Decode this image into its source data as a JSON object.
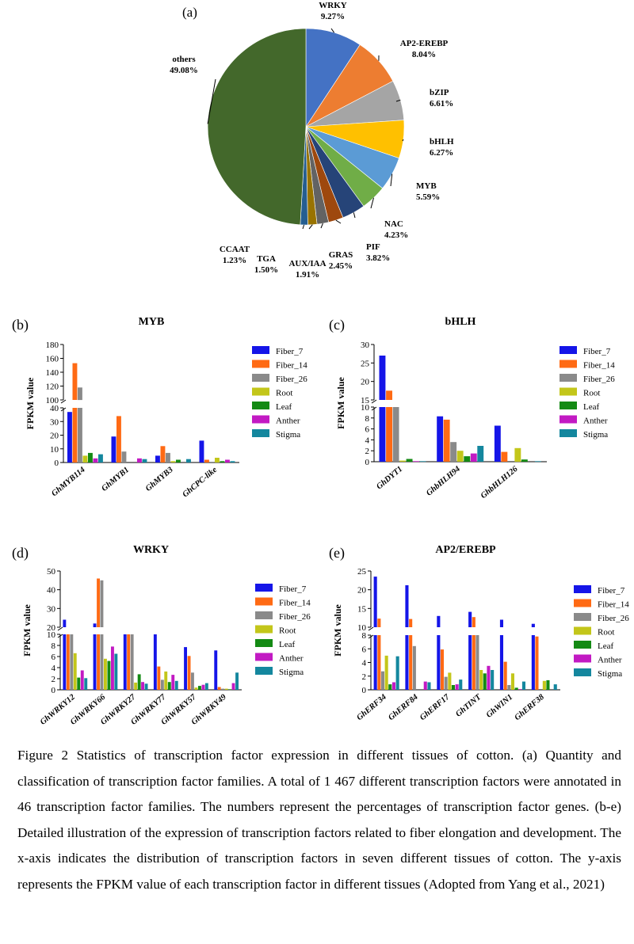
{
  "caption": "Figure 2 Statistics of transcription factor expression in different tissues of cotton. (a) Quantity and classification of transcription factor families. A total of 1 467 different transcription factors were annotated in 46 transcription factor families. The numbers represent the percentages of transcription factor genes. (b-e) Detailed illustration of the expression of transcription factors related to fiber elongation and development. The x-axis indicates the distribution of transcription factors in seven different tissues of cotton. The y-axis represents the FPKM value of each transcription factor in different tissues (Adopted from Yang et al., 2021)",
  "tissues": [
    "Fiber_7",
    "Fiber_14",
    "Fiber_26",
    "Root",
    "Leaf",
    "Anther",
    "Stigma"
  ],
  "colors": [
    "#1515e8",
    "#ff6a14",
    "#8a8a8a",
    "#c3c61a",
    "#148a14",
    "#c21ac3",
    "#14879e"
  ],
  "chart_data": [
    {
      "panel": "(a)",
      "type": "pie",
      "slices": [
        {
          "label": "WRKY",
          "value": 9.27,
          "color": "#4472c4"
        },
        {
          "label": "AP2-EREBP",
          "value": 8.04,
          "color": "#ed7d31"
        },
        {
          "label": "bZIP",
          "value": 6.61,
          "color": "#a5a5a5"
        },
        {
          "label": "bHLH",
          "value": 6.27,
          "color": "#ffc000"
        },
        {
          "label": "MYB",
          "value": 5.59,
          "color": "#5b9bd5"
        },
        {
          "label": "NAC",
          "value": 4.23,
          "color": "#70ad47"
        },
        {
          "label": "PIF",
          "value": 3.82,
          "color": "#264478"
        },
        {
          "label": "GRAS",
          "value": 2.45,
          "color": "#9e480e"
        },
        {
          "label": "AUX/IAA",
          "value": 1.91,
          "color": "#636363"
        },
        {
          "label": "TGA",
          "value": 1.5,
          "color": "#997300"
        },
        {
          "label": "CCAAT",
          "value": 1.23,
          "color": "#255e91"
        },
        {
          "label": "others",
          "value": 49.08,
          "color": "#43682b"
        }
      ]
    },
    {
      "panel": "(b)",
      "type": "bar",
      "title": "MYB",
      "ylabel": "FPKM value",
      "categories": [
        "GhMYB114",
        "GhMYB1",
        "GhMYB3",
        "GhCPC-like"
      ],
      "lower_ticks": [
        0,
        10,
        20,
        30,
        40
      ],
      "upper_ticks": [
        100,
        120,
        140,
        160,
        180
      ],
      "series": [
        {
          "name": "Fiber_7",
          "values": [
            37,
            19,
            5,
            16
          ]
        },
        {
          "name": "Fiber_14",
          "values": [
            153,
            34,
            12,
            2
          ]
        },
        {
          "name": "Fiber_26",
          "values": [
            118,
            8,
            7,
            0.5
          ]
        },
        {
          "name": "Root",
          "values": [
            5,
            0,
            1,
            3.5
          ]
        },
        {
          "name": "Leaf",
          "values": [
            7,
            0,
            2,
            1
          ]
        },
        {
          "name": "Anther",
          "values": [
            3,
            3,
            0,
            2
          ]
        },
        {
          "name": "Stigma",
          "values": [
            6,
            2.5,
            2.5,
            1
          ]
        }
      ]
    },
    {
      "panel": "(c)",
      "type": "bar",
      "title": "bHLH",
      "ylabel": "FPKM value",
      "categories": [
        "GhDYT1",
        "GhbHLH94",
        "GhbHLH126"
      ],
      "lower_ticks": [
        0,
        2,
        4,
        6,
        8,
        10
      ],
      "upper_ticks": [
        15,
        20,
        25,
        30
      ],
      "series": [
        {
          "name": "Fiber_7",
          "values": [
            27,
            8.3,
            6.6
          ]
        },
        {
          "name": "Fiber_14",
          "values": [
            17.5,
            7.7,
            1.8
          ]
        },
        {
          "name": "Fiber_26",
          "values": [
            15,
            3.6,
            0
          ]
        },
        {
          "name": "Root",
          "values": [
            0.2,
            2,
            2.5
          ]
        },
        {
          "name": "Leaf",
          "values": [
            0.5,
            1,
            0.4
          ]
        },
        {
          "name": "Anther",
          "values": [
            0.1,
            1.5,
            0
          ]
        },
        {
          "name": "Stigma",
          "values": [
            0.1,
            2.9,
            0.1
          ]
        }
      ]
    },
    {
      "panel": "(d)",
      "type": "bar",
      "title": "WRKY",
      "ylabel": "FPKM value",
      "categories": [
        "GhWRKY12",
        "GhWRKY66",
        "GhWRKY27",
        "GhWRKY77",
        "GhWRKY57",
        "GhWRKY49"
      ],
      "lower_ticks": [
        0,
        2,
        4,
        6,
        8,
        10
      ],
      "upper_ticks": [
        20,
        30,
        40,
        50
      ],
      "series": [
        {
          "name": "Fiber_7",
          "values": [
            24,
            22,
            18,
            13.5,
            7.7,
            7.1
          ]
        },
        {
          "name": "Fiber_14",
          "values": [
            20,
            46,
            18,
            4.2,
            6.1,
            0.5
          ]
        },
        {
          "name": "Fiber_26",
          "values": [
            13,
            45,
            16,
            1.8,
            3.1,
            0.2
          ]
        },
        {
          "name": "Root",
          "values": [
            6.6,
            5.6,
            1.3,
            3.3,
            0.4,
            0.2
          ]
        },
        {
          "name": "Leaf",
          "values": [
            2.2,
            5.2,
            2.8,
            1.4,
            0.7,
            0.1
          ]
        },
        {
          "name": "Anther",
          "values": [
            3.5,
            7.8,
            1.4,
            2.7,
            0.9,
            1.2
          ]
        },
        {
          "name": "Stigma",
          "values": [
            2.1,
            6.5,
            1.1,
            1.6,
            1.2,
            3.1
          ]
        }
      ]
    },
    {
      "panel": "(e)",
      "type": "bar",
      "title": "AP2/EREBP",
      "ylabel": "FPKM value",
      "categories": [
        "GhERF34",
        "GhERF84",
        "GhERF17",
        "GhTINT",
        "GhWIN1",
        "GhERF38"
      ],
      "lower_ticks": [
        0,
        2,
        4,
        6,
        8
      ],
      "upper_ticks": [
        10,
        15,
        20,
        25
      ],
      "series": [
        {
          "name": "Fiber_7",
          "values": [
            23.5,
            21.2,
            13,
            14.1,
            12,
            10.9
          ]
        },
        {
          "name": "Fiber_14",
          "values": [
            12.3,
            12.2,
            5.9,
            12.7,
            4.1,
            7.8
          ]
        },
        {
          "name": "Fiber_26",
          "values": [
            2.7,
            6.4,
            1.9,
            10,
            0.7,
            0
          ]
        },
        {
          "name": "Root",
          "values": [
            5,
            0,
            2.5,
            2.9,
            2.4,
            1.3
          ]
        },
        {
          "name": "Leaf",
          "values": [
            0.8,
            0,
            0.7,
            2.4,
            0.3,
            1.4
          ]
        },
        {
          "name": "Anther",
          "values": [
            1.1,
            1.2,
            0.8,
            3.5,
            0.1,
            0
          ]
        },
        {
          "name": "Stigma",
          "values": [
            4.9,
            1.1,
            1.5,
            2.9,
            1.2,
            0.8
          ]
        }
      ]
    }
  ]
}
